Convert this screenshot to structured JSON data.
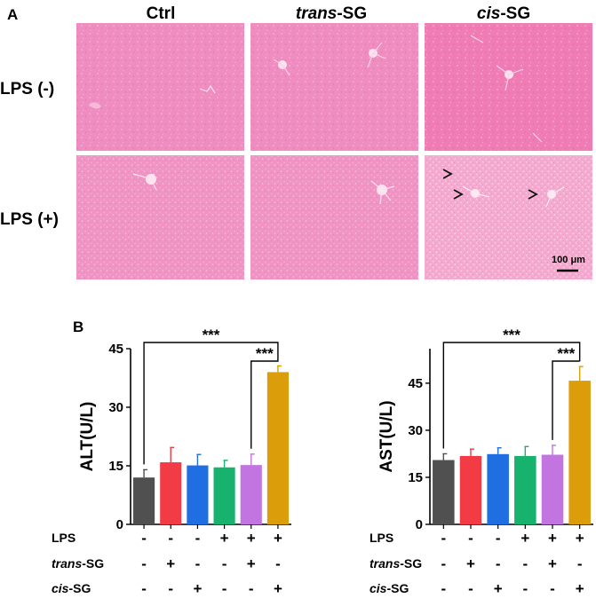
{
  "panel_a": {
    "label": "A",
    "columns": [
      {
        "italic": "",
        "rest": "Ctrl"
      },
      {
        "italic": "trans",
        "rest": "-SG"
      },
      {
        "italic": "cis",
        "rest": "-SG"
      }
    ],
    "rows": [
      "LPS (-)",
      "LPS (+)"
    ],
    "scale_bar": "100 μm",
    "colors": {
      "tissue": "#ef86bd",
      "tissue_light": "#f4a9cf",
      "vessel": "#fbe3f0",
      "arrow": "#111111"
    }
  },
  "panel_b": {
    "label": "B",
    "condition_rows": [
      {
        "italic": "",
        "rest": "LPS",
        "signs": [
          "-",
          "-",
          "-",
          "+",
          "+",
          "+"
        ]
      },
      {
        "italic": "trans",
        "rest": "-SG",
        "signs": [
          "-",
          "+",
          "-",
          "-",
          "+",
          "-"
        ]
      },
      {
        "italic": "cis",
        "rest": "-SG",
        "signs": [
          "-",
          "-",
          "+",
          "-",
          "-",
          "+"
        ]
      }
    ]
  },
  "chart_data": [
    {
      "type": "bar",
      "ylabel": "ALT(U/L)",
      "xlabel": "",
      "ylim": [
        0,
        45
      ],
      "yticks": [
        0,
        15,
        30,
        45
      ],
      "values": [
        12.0,
        15.9,
        15.1,
        14.6,
        15.2,
        39.0
      ],
      "errors": [
        2.0,
        3.8,
        2.8,
        1.8,
        2.8,
        1.6
      ],
      "colors": [
        "#505050",
        "#f23b45",
        "#1f6fe3",
        "#16b26e",
        "#c275e0",
        "#dc9d0a"
      ],
      "annotations": [
        "***",
        "***"
      ],
      "significance": [
        {
          "from": 0,
          "to": 5,
          "label": "***"
        },
        {
          "from": 4,
          "to": 5,
          "label": "***"
        }
      ]
    },
    {
      "type": "bar",
      "ylabel": "AST(U/L)",
      "xlabel": "",
      "ylim": [
        0,
        56
      ],
      "yticks": [
        0,
        15,
        30,
        45
      ],
      "values": [
        20.5,
        21.8,
        22.4,
        21.8,
        22.2,
        45.8
      ],
      "errors": [
        2.0,
        2.2,
        2.0,
        3.0,
        3.0,
        4.5
      ],
      "colors": [
        "#505050",
        "#f23b45",
        "#1f6fe3",
        "#16b26e",
        "#c275e0",
        "#dc9d0a"
      ],
      "annotations": [
        "***",
        "***"
      ],
      "significance": [
        {
          "from": 0,
          "to": 5,
          "label": "***"
        },
        {
          "from": 4,
          "to": 5,
          "label": "***"
        }
      ]
    }
  ]
}
